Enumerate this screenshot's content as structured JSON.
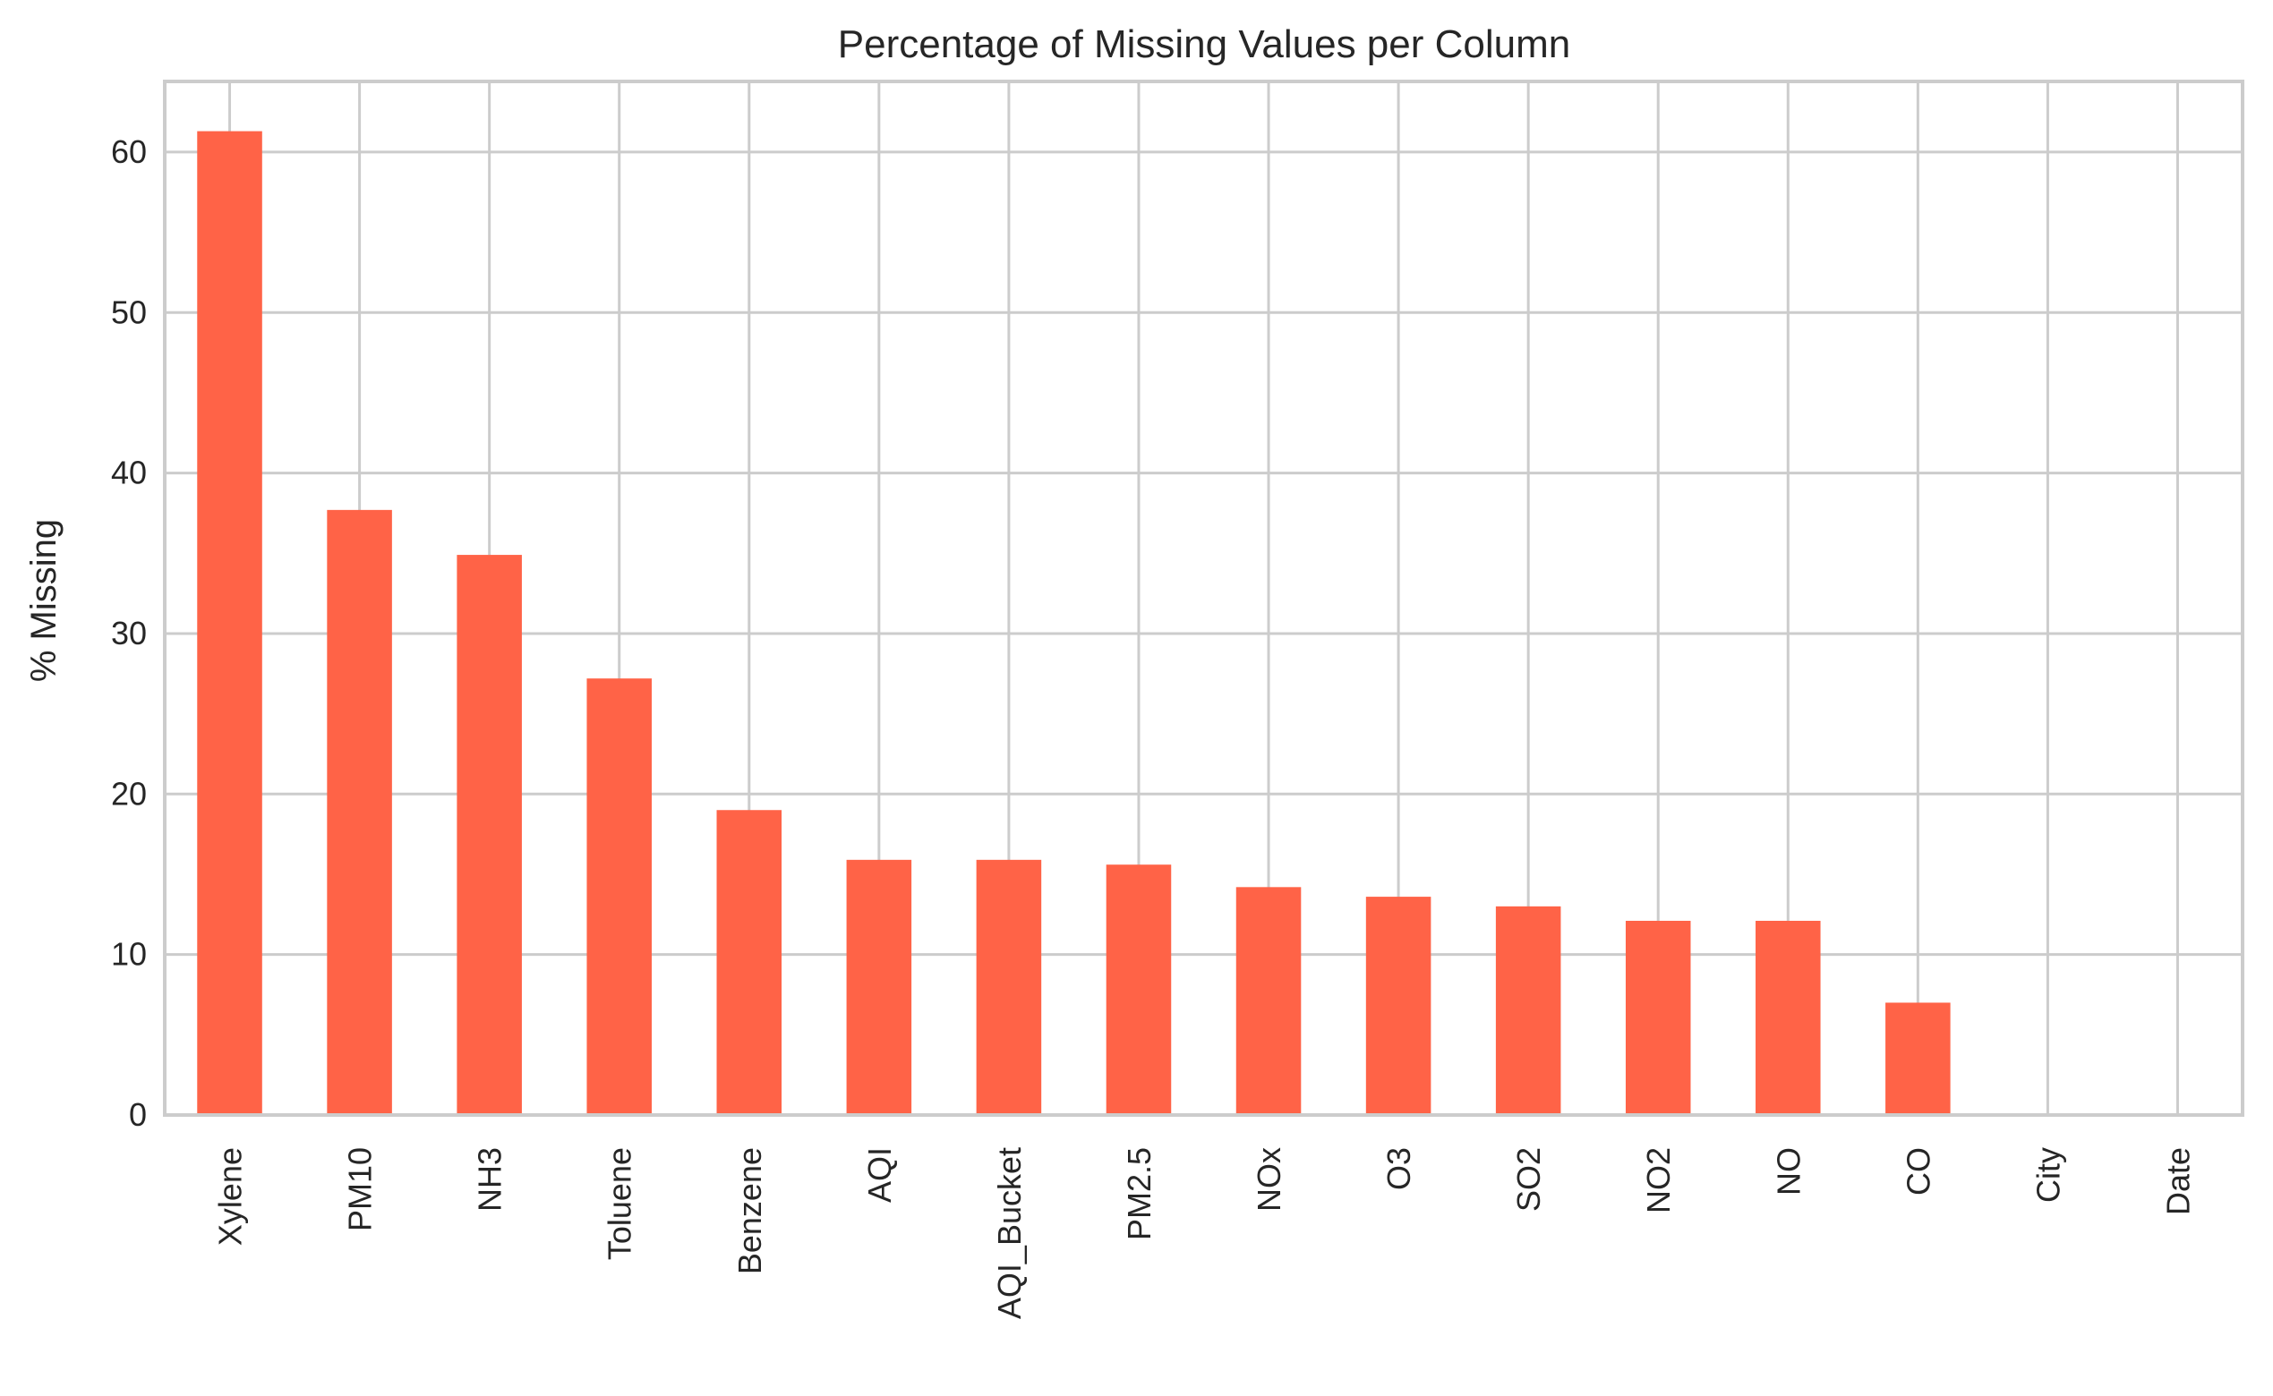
{
  "chart_data": {
    "type": "bar",
    "title": "Percentage of Missing Values per Column",
    "xlabel": "",
    "ylabel": "% Missing",
    "categories": [
      "Xylene",
      "PM10",
      "NH3",
      "Toluene",
      "Benzene",
      "AQI",
      "AQI_Bucket",
      "PM2.5",
      "NOx",
      "O3",
      "SO2",
      "NO2",
      "NO",
      "CO",
      "City",
      "Date"
    ],
    "values": [
      61.3,
      37.7,
      34.9,
      27.2,
      19.0,
      15.9,
      15.9,
      15.6,
      14.2,
      13.6,
      13.0,
      12.1,
      12.1,
      7.0,
      0.0,
      0.0
    ],
    "yticks": [
      0,
      10,
      20,
      30,
      40,
      50,
      60
    ],
    "ylim": [
      0,
      64.4
    ],
    "grid": true,
    "bar_color": "#ff6347"
  }
}
